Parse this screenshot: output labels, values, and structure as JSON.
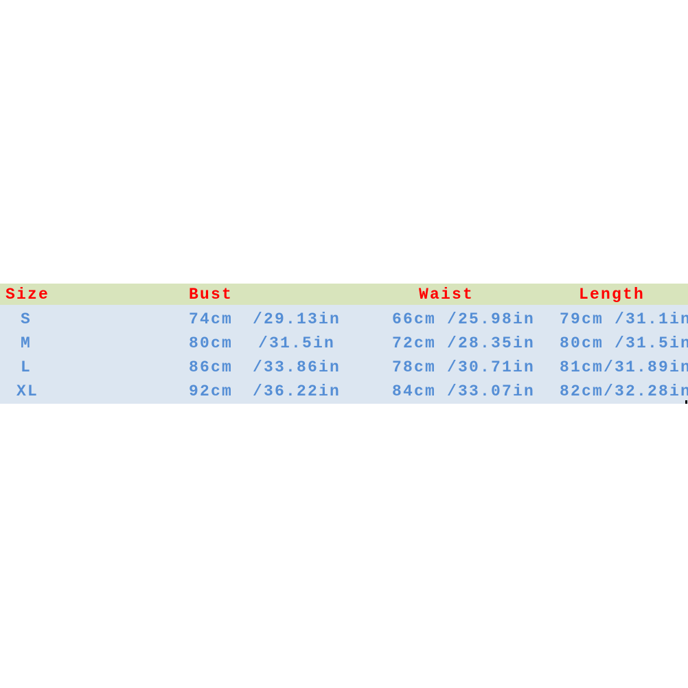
{
  "table": {
    "headers": {
      "size": "Size",
      "bust": "Bust",
      "waist": "Waist",
      "length": "Length"
    },
    "rows": [
      {
        "size": "S",
        "bust_cm": "74cm",
        "bust_in": "/29.13in",
        "waist": "66cm /25.98in",
        "length": "79cm /31.1in"
      },
      {
        "size": "M",
        "bust_cm": "80cm",
        "bust_in": "/31.5in",
        "waist": "72cm /28.35in",
        "length": "80cm /31.5in"
      },
      {
        "size": "L",
        "bust_cm": "86cm",
        "bust_in": "/33.86in",
        "waist": "78cm /30.71in",
        "length": "81cm/31.89in"
      },
      {
        "size": "XL",
        "bust_cm": "92cm",
        "bust_in": "/36.22in",
        "waist": "84cm /33.07in",
        "length": "82cm/32.28in"
      }
    ]
  },
  "colors": {
    "header_bg": "#d8e4bc",
    "body_bg": "#dce6f1",
    "header_text": "#ff0000",
    "cell_text": "#558ed5"
  }
}
